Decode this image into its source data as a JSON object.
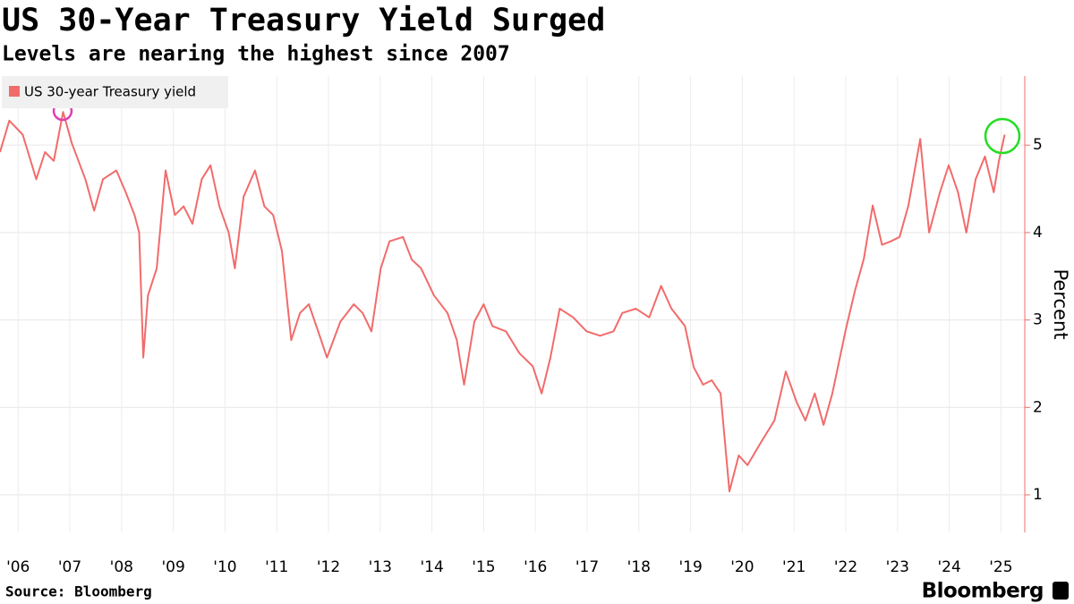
{
  "chart_data": {
    "type": "line",
    "title": "US 30-Year Treasury Yield Surged",
    "subtitle": "Levels are nearing the highest since 2007",
    "y_label": "Percent",
    "source": "Source: Bloomberg",
    "brand": "Bloomberg",
    "legend": "top-left",
    "grid": true,
    "x": [
      2005.65,
      2005.83,
      2006.09,
      2006.35,
      2006.52,
      2006.69,
      2006.87,
      2007.04,
      2007.3,
      2007.47,
      2007.64,
      2007.9,
      2008.08,
      2008.25,
      2008.34,
      2008.42,
      2008.51,
      2008.68,
      2008.85,
      2009.03,
      2009.2,
      2009.37,
      2009.55,
      2009.72,
      2009.89,
      2010.07,
      2010.19,
      2010.36,
      2010.58,
      2010.76,
      2010.93,
      2011.1,
      2011.28,
      2011.45,
      2011.62,
      2011.8,
      2011.97,
      2012.23,
      2012.49,
      2012.66,
      2012.83,
      2013.01,
      2013.18,
      2013.44,
      2013.61,
      2013.79,
      2014.04,
      2014.3,
      2014.48,
      2014.62,
      2014.82,
      2015.0,
      2015.17,
      2015.43,
      2015.69,
      2015.95,
      2016.12,
      2016.29,
      2016.47,
      2016.73,
      2016.99,
      2017.25,
      2017.51,
      2017.68,
      2017.94,
      2018.2,
      2018.43,
      2018.63,
      2018.89,
      2019.06,
      2019.24,
      2019.41,
      2019.58,
      2019.75,
      2019.93,
      2020.1,
      2020.36,
      2020.62,
      2020.84,
      2021.05,
      2021.22,
      2021.4,
      2021.57,
      2021.74,
      2022.0,
      2022.18,
      2022.35,
      2022.52,
      2022.7,
      2022.87,
      2023.04,
      2023.21,
      2023.44,
      2023.61,
      2023.82,
      2023.99,
      2024.17,
      2024.33,
      2024.51,
      2024.69,
      2024.86,
      2024.96,
      2025.07
    ],
    "series": [
      {
        "name": "US 30-year Treasury yield",
        "color": "#f26b6b",
        "values": [
          4.92,
          5.28,
          5.12,
          4.61,
          4.92,
          4.82,
          5.38,
          5.02,
          4.61,
          4.25,
          4.61,
          4.71,
          4.46,
          4.2,
          4.0,
          2.57,
          3.28,
          3.59,
          4.71,
          4.2,
          4.3,
          4.1,
          4.61,
          4.77,
          4.3,
          4.0,
          3.59,
          4.41,
          4.71,
          4.3,
          4.2,
          3.79,
          2.77,
          3.08,
          3.18,
          2.87,
          2.57,
          2.98,
          3.18,
          3.08,
          2.87,
          3.59,
          3.9,
          3.95,
          3.69,
          3.59,
          3.28,
          3.08,
          2.77,
          2.26,
          2.98,
          3.18,
          2.93,
          2.87,
          2.62,
          2.47,
          2.16,
          2.57,
          3.13,
          3.03,
          2.87,
          2.82,
          2.87,
          3.08,
          3.13,
          3.03,
          3.39,
          3.13,
          2.93,
          2.46,
          2.26,
          2.31,
          2.16,
          1.04,
          1.45,
          1.34,
          1.6,
          1.85,
          2.41,
          2.06,
          1.85,
          2.16,
          1.8,
          2.16,
          2.89,
          3.34,
          3.7,
          4.31,
          3.86,
          3.9,
          3.95,
          4.31,
          5.07,
          4.0,
          4.46,
          4.77,
          4.46,
          4.0,
          4.61,
          4.87,
          4.46,
          4.82,
          5.12
        ]
      }
    ],
    "xlim": [
      2005.65,
      2025.46
    ],
    "ylim": [
      0.57,
      5.79
    ],
    "yticks": [
      1,
      2,
      3,
      4,
      5
    ],
    "xticks": [
      {
        "value": 2006,
        "label": "'06"
      },
      {
        "value": 2007,
        "label": "'07"
      },
      {
        "value": 2008,
        "label": "'08"
      },
      {
        "value": 2009,
        "label": "'09"
      },
      {
        "value": 2010,
        "label": "'10"
      },
      {
        "value": 2011,
        "label": "'11"
      },
      {
        "value": 2012,
        "label": "'12"
      },
      {
        "value": 2013,
        "label": "'13"
      },
      {
        "value": 2014,
        "label": "'14"
      },
      {
        "value": 2015,
        "label": "'15"
      },
      {
        "value": 2016,
        "label": "'16"
      },
      {
        "value": 2017,
        "label": "'17"
      },
      {
        "value": 2018,
        "label": "'18"
      },
      {
        "value": 2019,
        "label": "'19"
      },
      {
        "value": 2020,
        "label": "'20"
      },
      {
        "value": 2021,
        "label": "'21"
      },
      {
        "value": 2022,
        "label": "'22"
      },
      {
        "value": 2023,
        "label": "'23"
      },
      {
        "value": 2024,
        "label": "'24"
      },
      {
        "value": 2025,
        "label": "'25"
      }
    ]
  }
}
